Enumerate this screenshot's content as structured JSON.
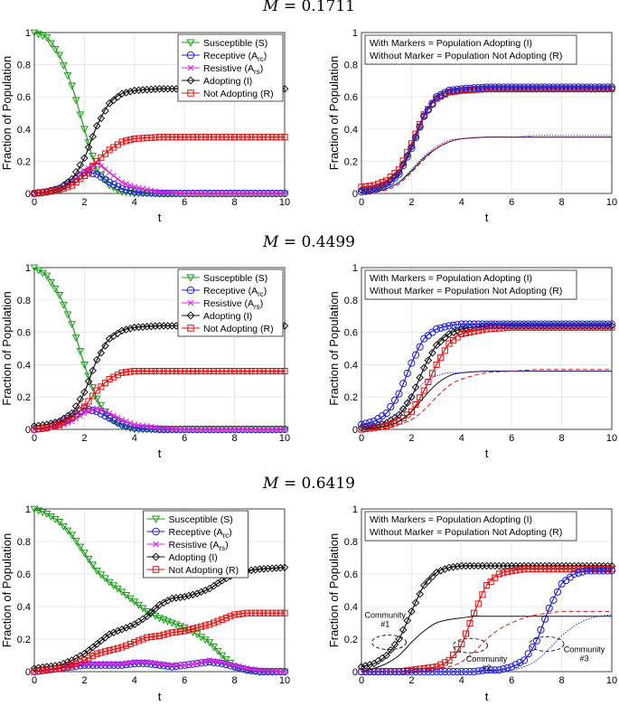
{
  "colors": {
    "susceptible": "#1a9e1a",
    "receptive": "#1f1fd6",
    "resistive": "#e020e0",
    "adopting": "#111111",
    "not_adopting": "#e01010"
  },
  "chart_data": [
    {
      "type": "line",
      "group_title": "M = 0.1711",
      "panel": "compartments",
      "xlabel": "t",
      "ylabel": "Fraction of Population",
      "xlim": [
        0,
        10
      ],
      "ylim": [
        0,
        1
      ],
      "xticks": [
        "0",
        "2",
        "4",
        "6",
        "8",
        "10"
      ],
      "yticks": [
        "0",
        "0.2",
        "0.4",
        "0.6",
        "0.8",
        "1"
      ],
      "legend_position": "top-right",
      "legend": [
        "Susceptible (S)",
        "Receptive (A_rc)",
        "Resistive (A_rs)",
        "Adopting (I)",
        "Not Adopting (R)"
      ],
      "x": [
        0,
        0.5,
        1,
        1.5,
        2,
        2.5,
        3,
        3.5,
        4,
        5,
        6,
        7,
        8,
        9,
        10
      ],
      "series": [
        {
          "name": "Susceptible (S)",
          "values": [
            1.0,
            0.97,
            0.86,
            0.67,
            0.4,
            0.15,
            0.05,
            0.01,
            0.0,
            0.0,
            0.0,
            0.0,
            0.0,
            0.0,
            0.0
          ]
        },
        {
          "name": "Receptive (A_rc)",
          "values": [
            0.0,
            0.01,
            0.03,
            0.07,
            0.13,
            0.12,
            0.07,
            0.03,
            0.01,
            0.0,
            0.0,
            0.0,
            0.0,
            0.0,
            0.0
          ]
        },
        {
          "name": "Resistive (A_rs)",
          "values": [
            0.0,
            0.01,
            0.03,
            0.07,
            0.14,
            0.19,
            0.13,
            0.07,
            0.04,
            0.01,
            0.0,
            0.0,
            0.0,
            0.0,
            0.0
          ]
        },
        {
          "name": "Adopting (I)",
          "values": [
            0.0,
            0.01,
            0.03,
            0.09,
            0.22,
            0.42,
            0.56,
            0.62,
            0.64,
            0.65,
            0.65,
            0.65,
            0.65,
            0.65,
            0.65
          ]
        },
        {
          "name": "Not Adopting (R)",
          "values": [
            0.0,
            0.01,
            0.02,
            0.05,
            0.11,
            0.2,
            0.27,
            0.32,
            0.34,
            0.35,
            0.35,
            0.35,
            0.35,
            0.35,
            0.35
          ]
        }
      ]
    },
    {
      "type": "line",
      "group_title": "M = 0.1711",
      "panel": "communities",
      "xlabel": "t",
      "ylabel": "Fraction of Population",
      "xlim": [
        0,
        10
      ],
      "ylim": [
        0,
        1
      ],
      "xticks": [
        "0",
        "2",
        "4",
        "6",
        "8",
        "10"
      ],
      "yticks": [
        "0",
        "0.2",
        "0.4",
        "0.6",
        "0.8",
        "1"
      ],
      "legend_position": "top-left",
      "legend": [
        "With Markers = Population Adopting (I)",
        "Without Marker = Population Not Adopting (R)"
      ],
      "x": [
        0,
        0.5,
        1,
        1.5,
        2,
        2.5,
        3,
        3.5,
        4,
        5,
        6,
        7,
        8,
        9,
        10
      ],
      "series": [
        {
          "name": "Community 1 Adopting (I)",
          "color": "#111111",
          "markers": true,
          "values": [
            0.02,
            0.03,
            0.06,
            0.13,
            0.29,
            0.48,
            0.59,
            0.63,
            0.64,
            0.65,
            0.65,
            0.65,
            0.65,
            0.65,
            0.65
          ]
        },
        {
          "name": "Community 2 Adopting (I)",
          "color": "#e01010",
          "markers": true,
          "values": [
            0.04,
            0.05,
            0.08,
            0.15,
            0.31,
            0.49,
            0.59,
            0.63,
            0.64,
            0.65,
            0.65,
            0.65,
            0.65,
            0.65,
            0.65
          ]
        },
        {
          "name": "Community 3 Adopting (I)",
          "color": "#1f1fd6",
          "markers": true,
          "values": [
            0.01,
            0.02,
            0.05,
            0.12,
            0.28,
            0.48,
            0.6,
            0.64,
            0.65,
            0.66,
            0.66,
            0.66,
            0.66,
            0.66,
            0.66
          ]
        },
        {
          "name": "Community 1 Not Adopting (R)",
          "color": "#111111",
          "markers": false,
          "values": [
            0.0,
            0.01,
            0.03,
            0.07,
            0.14,
            0.22,
            0.28,
            0.32,
            0.34,
            0.35,
            0.35,
            0.35,
            0.35,
            0.35,
            0.35
          ]
        },
        {
          "name": "Community 2 Not Adopting (R)",
          "color": "#e01010",
          "markers": false,
          "values": [
            0.0,
            0.01,
            0.02,
            0.06,
            0.13,
            0.21,
            0.28,
            0.32,
            0.34,
            0.35,
            0.35,
            0.35,
            0.35,
            0.35,
            0.35
          ]
        },
        {
          "name": "Community 3 Not Adopting (R)",
          "color": "#1f1fd6",
          "markers": false,
          "values": [
            0.0,
            0.01,
            0.03,
            0.07,
            0.15,
            0.23,
            0.29,
            0.33,
            0.34,
            0.35,
            0.35,
            0.36,
            0.36,
            0.36,
            0.36
          ]
        }
      ]
    },
    {
      "type": "line",
      "group_title": "M = 0.4499",
      "panel": "compartments",
      "xlabel": "t",
      "ylabel": "Fraction of Population",
      "xlim": [
        0,
        10
      ],
      "ylim": [
        0,
        1
      ],
      "xticks": [
        "0",
        "2",
        "4",
        "6",
        "8",
        "10"
      ],
      "yticks": [
        "0",
        "0.2",
        "0.4",
        "0.6",
        "0.8",
        "1"
      ],
      "legend_position": "top-right",
      "legend": [
        "Susceptible (S)",
        "Receptive (A_rc)",
        "Resistive (A_rs)",
        "Adopting (I)",
        "Not Adopting (R)"
      ],
      "x": [
        0,
        0.5,
        1,
        1.5,
        2,
        2.5,
        3,
        3.5,
        4,
        5,
        6,
        7,
        8,
        9,
        10
      ],
      "series": [
        {
          "name": "Susceptible (S)",
          "values": [
            1.0,
            0.95,
            0.83,
            0.65,
            0.4,
            0.19,
            0.07,
            0.02,
            0.0,
            0.0,
            0.0,
            0.0,
            0.0,
            0.0,
            0.0
          ]
        },
        {
          "name": "Receptive (A_rc)",
          "values": [
            0.0,
            0.01,
            0.04,
            0.08,
            0.13,
            0.11,
            0.07,
            0.03,
            0.01,
            0.0,
            0.0,
            0.0,
            0.0,
            0.0,
            0.0
          ]
        },
        {
          "name": "Resistive (A_rs)",
          "values": [
            0.0,
            0.01,
            0.02,
            0.05,
            0.1,
            0.13,
            0.1,
            0.06,
            0.03,
            0.01,
            0.0,
            0.0,
            0.0,
            0.0,
            0.0
          ]
        },
        {
          "name": "Adopting (I)",
          "values": [
            0.02,
            0.03,
            0.05,
            0.1,
            0.23,
            0.43,
            0.56,
            0.61,
            0.63,
            0.64,
            0.64,
            0.64,
            0.64,
            0.64,
            0.64
          ]
        },
        {
          "name": "Not Adopting (R)",
          "values": [
            0.0,
            0.01,
            0.03,
            0.07,
            0.14,
            0.24,
            0.31,
            0.35,
            0.36,
            0.36,
            0.36,
            0.36,
            0.36,
            0.36,
            0.36
          ]
        }
      ]
    },
    {
      "type": "line",
      "group_title": "M = 0.4499",
      "panel": "communities",
      "xlabel": "t",
      "ylabel": "Fraction of Population",
      "xlim": [
        0,
        10
      ],
      "ylim": [
        0,
        1
      ],
      "xticks": [
        "0",
        "2",
        "4",
        "6",
        "8",
        "10"
      ],
      "yticks": [
        "0",
        "0.2",
        "0.4",
        "0.6",
        "0.8",
        "1"
      ],
      "legend_position": "top-left",
      "legend": [
        "With Markers = Population Adopting (I)",
        "Without Marker = Population Not Adopting (R)"
      ],
      "x": [
        0,
        0.5,
        1,
        1.5,
        2,
        2.5,
        3,
        3.5,
        4,
        5,
        6,
        7,
        8,
        9,
        10
      ],
      "series": [
        {
          "name": "Community 1 Adopting (I)",
          "color": "#111111",
          "markers": true,
          "values": [
            0.01,
            0.02,
            0.04,
            0.09,
            0.2,
            0.38,
            0.52,
            0.59,
            0.62,
            0.64,
            0.64,
            0.64,
            0.64,
            0.64,
            0.64
          ]
        },
        {
          "name": "Community 2 Adopting (I)",
          "color": "#e01010",
          "markers": true,
          "values": [
            0.0,
            0.01,
            0.02,
            0.05,
            0.11,
            0.24,
            0.4,
            0.53,
            0.59,
            0.62,
            0.63,
            0.63,
            0.63,
            0.63,
            0.63
          ]
        },
        {
          "name": "Community 3 Adopting (I)",
          "color": "#1f1fd6",
          "markers": true,
          "values": [
            0.03,
            0.05,
            0.1,
            0.22,
            0.41,
            0.56,
            0.62,
            0.64,
            0.65,
            0.65,
            0.65,
            0.65,
            0.65,
            0.65,
            0.65
          ]
        },
        {
          "name": "Community 1 Not Adopting (R)",
          "color": "#111111",
          "markers": false,
          "values": [
            0.0,
            0.01,
            0.02,
            0.05,
            0.11,
            0.2,
            0.28,
            0.33,
            0.35,
            0.36,
            0.36,
            0.36,
            0.36,
            0.36,
            0.36
          ]
        },
        {
          "name": "Community 2 Not Adopting (R)",
          "color": "#e01010",
          "markers": false,
          "values": [
            0.0,
            0.0,
            0.01,
            0.03,
            0.06,
            0.12,
            0.2,
            0.27,
            0.31,
            0.35,
            0.36,
            0.37,
            0.37,
            0.37,
            0.37
          ]
        },
        {
          "name": "Community 3 Not Adopting (R)",
          "color": "#1f1fd6",
          "markers": false,
          "values": [
            0.0,
            0.02,
            0.05,
            0.11,
            0.21,
            0.29,
            0.33,
            0.35,
            0.35,
            0.36,
            0.36,
            0.36,
            0.36,
            0.36,
            0.36
          ]
        }
      ]
    },
    {
      "type": "line",
      "group_title": "M = 0.6419",
      "panel": "compartments",
      "xlabel": "t",
      "ylabel": "Fraction of Population",
      "xlim": [
        0,
        10
      ],
      "ylim": [
        0,
        1
      ],
      "xticks": [
        "0",
        "2",
        "4",
        "6",
        "8",
        "10"
      ],
      "yticks": [
        "0",
        "0.2",
        "0.4",
        "0.6",
        "0.8",
        "1"
      ],
      "legend_position": "top-center",
      "legend": [
        "Susceptible (S)",
        "Receptive (A_rc)",
        "Resistive (A_rs)",
        "Adopting (I)",
        "Not Adopting (R)"
      ],
      "x": [
        0,
        0.5,
        1,
        1.5,
        2,
        2.5,
        3,
        3.5,
        4,
        4.5,
        5,
        5.5,
        6,
        6.5,
        7,
        7.5,
        8,
        8.5,
        9,
        10
      ],
      "series": [
        {
          "name": "Susceptible (S)",
          "values": [
            1.0,
            0.97,
            0.92,
            0.84,
            0.73,
            0.62,
            0.55,
            0.49,
            0.43,
            0.37,
            0.33,
            0.3,
            0.27,
            0.23,
            0.18,
            0.1,
            0.03,
            0.01,
            0.0,
            0.0
          ]
        },
        {
          "name": "Receptive (A_rc)",
          "values": [
            0.0,
            0.01,
            0.02,
            0.03,
            0.04,
            0.04,
            0.04,
            0.04,
            0.05,
            0.05,
            0.04,
            0.03,
            0.04,
            0.05,
            0.06,
            0.05,
            0.03,
            0.01,
            0.0,
            0.0
          ]
        },
        {
          "name": "Resistive (A_rs)",
          "values": [
            0.0,
            0.01,
            0.02,
            0.04,
            0.05,
            0.05,
            0.05,
            0.05,
            0.06,
            0.06,
            0.05,
            0.04,
            0.04,
            0.05,
            0.07,
            0.06,
            0.04,
            0.02,
            0.01,
            0.0
          ]
        },
        {
          "name": "Adopting (I)",
          "values": [
            0.02,
            0.03,
            0.04,
            0.07,
            0.11,
            0.17,
            0.23,
            0.26,
            0.29,
            0.34,
            0.41,
            0.45,
            0.46,
            0.48,
            0.51,
            0.56,
            0.6,
            0.62,
            0.63,
            0.64
          ]
        },
        {
          "name": "Not Adopting (R)",
          "values": [
            0.0,
            0.01,
            0.02,
            0.04,
            0.07,
            0.11,
            0.13,
            0.15,
            0.18,
            0.21,
            0.22,
            0.24,
            0.25,
            0.27,
            0.29,
            0.32,
            0.35,
            0.36,
            0.36,
            0.36
          ]
        }
      ]
    },
    {
      "type": "line",
      "group_title": "M = 0.6419",
      "panel": "communities",
      "xlabel": "t",
      "ylabel": "Fraction of Population",
      "xlim": [
        0,
        10
      ],
      "ylim": [
        0,
        1
      ],
      "xticks": [
        "0",
        "2",
        "4",
        "6",
        "8",
        "10"
      ],
      "yticks": [
        "0",
        "0.2",
        "0.4",
        "0.6",
        "0.8",
        "1"
      ],
      "legend_position": "top-left",
      "legend": [
        "With Markers = Population Adopting (I)",
        "Without Marker = Population Not Adopting (R)"
      ],
      "annotations": [
        "Community #1",
        "Community #2",
        "Community #3"
      ],
      "x": [
        0,
        0.5,
        1,
        1.5,
        2,
        2.5,
        3,
        3.5,
        4,
        4.5,
        5,
        5.5,
        6,
        6.5,
        7,
        7.5,
        8,
        8.5,
        9,
        9.5,
        10
      ],
      "series": [
        {
          "name": "Community 1 Adopting (I)",
          "color": "#111111",
          "markers": true,
          "values": [
            0.03,
            0.05,
            0.1,
            0.2,
            0.37,
            0.53,
            0.61,
            0.64,
            0.65,
            0.65,
            0.65,
            0.65,
            0.65,
            0.65,
            0.65,
            0.65,
            0.65,
            0.65,
            0.65,
            0.65,
            0.65
          ]
        },
        {
          "name": "Community 2 Adopting (I)",
          "color": "#e01010",
          "markers": true,
          "values": [
            0.0,
            0.0,
            0.0,
            0.0,
            0.01,
            0.02,
            0.03,
            0.07,
            0.17,
            0.36,
            0.53,
            0.6,
            0.62,
            0.63,
            0.63,
            0.63,
            0.63,
            0.63,
            0.63,
            0.63,
            0.63
          ]
        },
        {
          "name": "Community 3 Adopting (I)",
          "color": "#1f1fd6",
          "markers": true,
          "values": [
            0.0,
            0.0,
            0.0,
            0.0,
            0.0,
            0.0,
            0.0,
            0.0,
            0.0,
            0.0,
            0.01,
            0.01,
            0.03,
            0.07,
            0.19,
            0.39,
            0.54,
            0.6,
            0.62,
            0.62,
            0.62
          ]
        },
        {
          "name": "Community 1 Not Adopting (R)",
          "color": "#111111",
          "markers": false,
          "values": [
            0.0,
            0.02,
            0.05,
            0.1,
            0.18,
            0.25,
            0.3,
            0.32,
            0.33,
            0.34,
            0.34,
            0.34,
            0.34,
            0.34,
            0.34,
            0.34,
            0.34,
            0.34,
            0.34,
            0.34,
            0.34
          ]
        },
        {
          "name": "Community 2 Not Adopting (R)",
          "color": "#e01010",
          "markers": false,
          "values": [
            0.0,
            0.0,
            0.0,
            0.0,
            0.0,
            0.01,
            0.02,
            0.03,
            0.06,
            0.12,
            0.2,
            0.26,
            0.3,
            0.33,
            0.35,
            0.36,
            0.37,
            0.37,
            0.37,
            0.37,
            0.37
          ]
        },
        {
          "name": "Community 3 Not Adopting (R)",
          "color": "#1f1fd6",
          "markers": false,
          "values": [
            0.0,
            0.0,
            0.0,
            0.0,
            0.0,
            0.0,
            0.0,
            0.0,
            0.0,
            0.0,
            0.0,
            0.01,
            0.01,
            0.03,
            0.07,
            0.14,
            0.22,
            0.28,
            0.32,
            0.34,
            0.35
          ]
        }
      ]
    }
  ]
}
